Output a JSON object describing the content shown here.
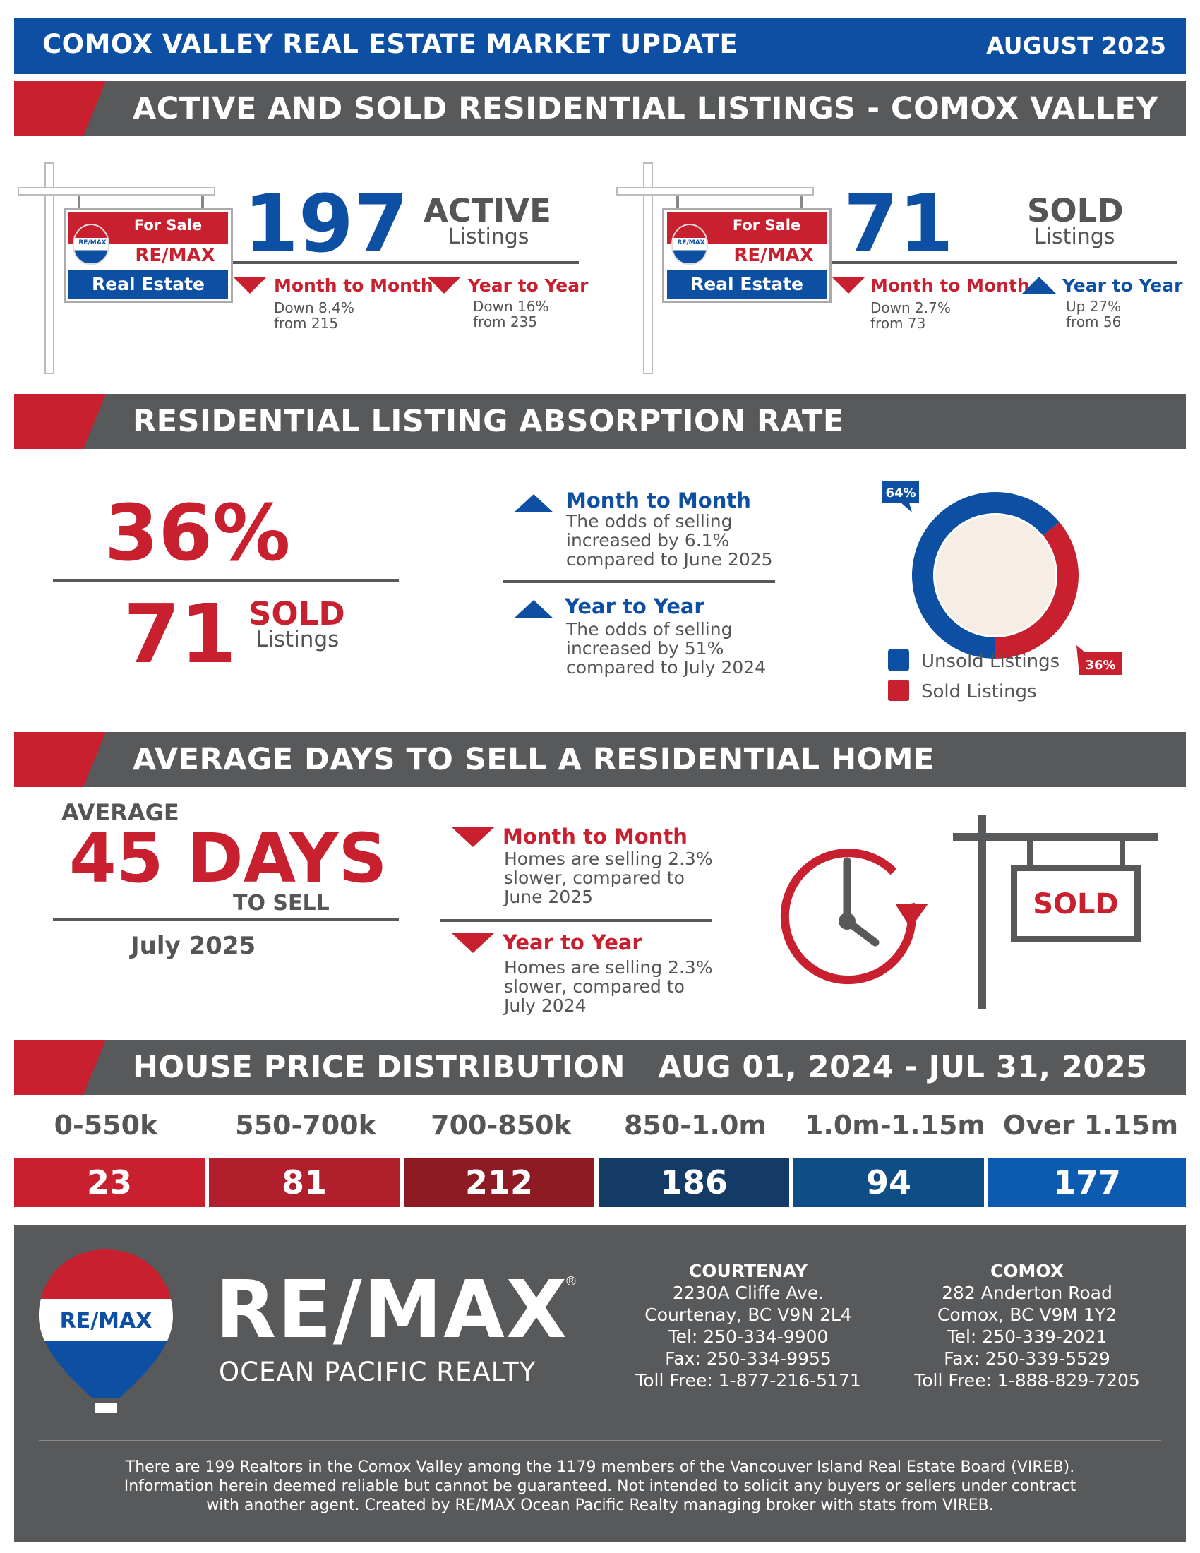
{
  "header": {
    "title": "COMOX VALLEY REAL ESTATE MARKET UPDATE",
    "date": "AUGUST 2025"
  },
  "sections": {
    "s1": "ACTIVE AND SOLD RESIDENTIAL LISTINGS - COMOX VALLEY",
    "s2": "RESIDENTIAL LISTING ABSORPTION RATE",
    "s3": "AVERAGE DAYS TO SELL A RESIDENTIAL HOME",
    "s4": "HOUSE PRICE DISTRIBUTION   AUG 01, 2024 - JUL 31, 2025"
  },
  "sign": {
    "for_sale": "For Sale",
    "brand": "RE/MAX",
    "real_estate": "Real Estate",
    "balloon_mini": "RE/MAX"
  },
  "active": {
    "number": "197",
    "label1": "ACTIVE",
    "label2": "Listings",
    "mtm_label": "Month to Month",
    "mtm_desc1": "Down 8.4%",
    "mtm_desc2": "from 215",
    "yty_label": "Year to Year",
    "yty_desc1": "Down 16%",
    "yty_desc2": "from 235"
  },
  "sold": {
    "number": "71",
    "label1": "SOLD",
    "label2": "Listings",
    "mtm_label": "Month to Month",
    "mtm_desc1": "Down 2.7%",
    "mtm_desc2": "from 73",
    "yty_label": "Year to Year",
    "yty_desc1": "Up 27%",
    "yty_desc2": "from 56"
  },
  "absorption": {
    "percent": "36%",
    "sold_number": "71",
    "sold_label1": "SOLD",
    "sold_label2": "Listings",
    "mtm_label": "Month to Month",
    "mtm_l1": "The odds of selling",
    "mtm_l2": "increased by 6.1%",
    "mtm_l3": "compared to June 2025",
    "yty_label": "Year to Year",
    "yty_l1": "The odds of selling",
    "yty_l2": "increased by 51%",
    "yty_l3": "compared to July 2024"
  },
  "chart_data": {
    "type": "pie",
    "categories": [
      "Unsold Listings",
      "Sold Listings"
    ],
    "values": [
      64,
      36
    ],
    "value_labels": [
      "64%",
      "36%"
    ],
    "colors": [
      "#0d4fa3",
      "#c8202e"
    ],
    "legend_position": "bottom"
  },
  "days": {
    "average": "AVERAGE",
    "number": "45 DAYS",
    "to_sell": "TO SELL",
    "month": "July 2025",
    "mtm_label": "Month to Month",
    "mtm_l1": "Homes are selling 2.3%",
    "mtm_l2": "slower, compared to",
    "mtm_l3": "June 2025",
    "yty_label": "Year to Year",
    "yty_l1": "Homes are selling 2.3%",
    "yty_l2": "slower, compared to",
    "yty_l3": "July 2024",
    "sold_sign": "SOLD"
  },
  "price_distribution": {
    "labels": [
      "0-550k",
      "550-700k",
      "700-850k",
      "850-1.0m",
      "1.0m-1.15m",
      "Over 1.15m"
    ],
    "values": [
      "23",
      "81",
      "212",
      "186",
      "94",
      "177"
    ],
    "colors": [
      "#c8202e",
      "#b11f2c",
      "#8e1a24",
      "#143a66",
      "#0e4d85",
      "#0d5bb0"
    ]
  },
  "footer": {
    "brand": "RE/MAX",
    "reg": "®",
    "sub": "OCEAN PACIFIC REALTY",
    "balloon": "RE/MAX",
    "courtenay": {
      "h": "COURTENAY",
      "l1": "2230A Cliffe Ave.",
      "l2": "Courtenay, BC V9N 2L4",
      "l3": "Tel: 250-334-9900",
      "l4": "Fax: 250-334-9955",
      "l5": "Toll Free: 1-877-216-5171"
    },
    "comox": {
      "h": "COMOX",
      "l1": "282 Anderton Road",
      "l2": "Comox, BC V9M 1Y2",
      "l3": "Tel: 250-339-2021",
      "l4": "Fax: 250-339-5529",
      "l5": "Toll Free: 1-888-829-7205"
    },
    "disclaimer1": "There are 199 Realtors in the Comox Valley among the 1179 members of the Vancouver Island Real Estate Board (VIREB).",
    "disclaimer2": "Information herein deemed reliable but cannot be guaranteed. Not intended to solicit any buyers or sellers under contract",
    "disclaimer3": "with another agent.   Created by RE/MAX Ocean Pacific Realty managing broker with stats from VIREB."
  }
}
